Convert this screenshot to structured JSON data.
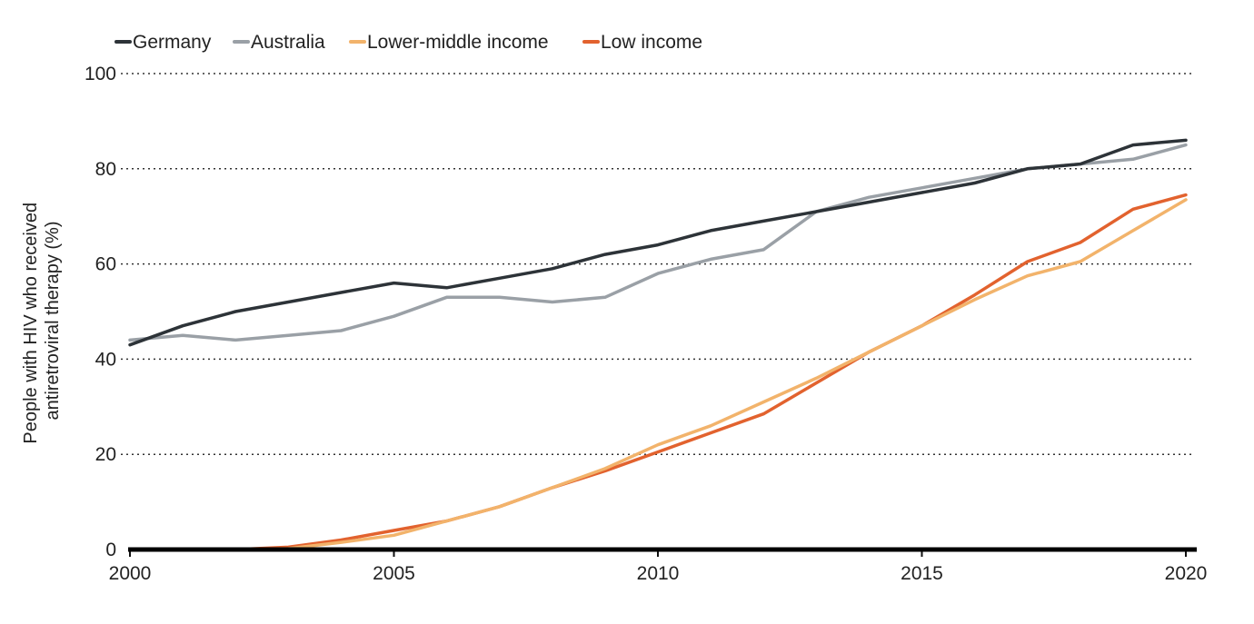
{
  "chart_data": {
    "type": "line",
    "ylabel_lines": [
      "People with HIV who received",
      "antiretroviral therapy (%)"
    ],
    "xlabel": "",
    "xlim": [
      2000,
      2020
    ],
    "ylim": [
      0,
      100
    ],
    "x_ticks": [
      2000,
      2005,
      2010,
      2015,
      2020
    ],
    "y_ticks": [
      0,
      20,
      40,
      60,
      80,
      100
    ],
    "grid": "horizontal-dotted",
    "legend_position": "top-left",
    "x": [
      2000,
      2001,
      2002,
      2003,
      2004,
      2005,
      2006,
      2007,
      2008,
      2009,
      2010,
      2011,
      2012,
      2013,
      2014,
      2015,
      2016,
      2017,
      2018,
      2019,
      2020
    ],
    "series": [
      {
        "name": "Germany",
        "color": "#2d3338",
        "values": [
          43,
          47,
          50,
          52,
          54,
          56,
          55,
          57,
          59,
          62,
          64,
          67,
          69,
          71,
          73,
          75,
          77,
          80,
          81,
          85,
          86
        ]
      },
      {
        "name": "Australia",
        "color": "#9aa0a6",
        "values": [
          44,
          45,
          44,
          45,
          46,
          49,
          53,
          53,
          52,
          53,
          58,
          61,
          63,
          71,
          74,
          76,
          78,
          80,
          81,
          82,
          85
        ]
      },
      {
        "name": "Lower-middle income",
        "color": "#f2b36b",
        "values": [
          0,
          0,
          0,
          0.2,
          1.5,
          3,
          6,
          9,
          13,
          17,
          22,
          26,
          31,
          36,
          41.5,
          47,
          52.5,
          57.5,
          60.5,
          67,
          73.5
        ]
      },
      {
        "name": "Low income",
        "color": "#e2622e",
        "values": [
          0,
          0,
          0,
          0.5,
          2,
          4,
          6,
          9,
          13,
          16.5,
          20.5,
          24.5,
          28.5,
          35,
          41.5,
          47,
          53.5,
          60.5,
          64.5,
          71.5,
          74.5
        ]
      }
    ]
  }
}
